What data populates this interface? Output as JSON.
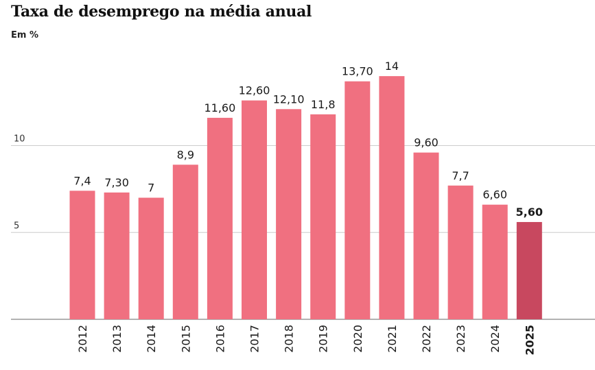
{
  "chart_data": {
    "type": "bar",
    "title": "Taxa de desemprego na média anual",
    "subtitle": "Em %",
    "xlabel": "",
    "ylabel": "Em %",
    "ylim": [
      0,
      15
    ],
    "yticks": [
      {
        "value": 5,
        "label": "5"
      },
      {
        "value": 10,
        "label": "10"
      }
    ],
    "grid": true,
    "categories": [
      "2012",
      "2013",
      "2014",
      "2015",
      "2016",
      "2017",
      "2018",
      "2019",
      "2020",
      "2021",
      "2022",
      "2023",
      "2024",
      "2025"
    ],
    "values": [
      7.4,
      7.3,
      7,
      8.9,
      11.6,
      12.6,
      12.1,
      11.8,
      13.7,
      14,
      9.6,
      7.7,
      6.6,
      5.6
    ],
    "value_labels": [
      "7,4",
      "7,30",
      "7",
      "8,9",
      "11,60",
      "12,60",
      "12,10",
      "11,8",
      "13,70",
      "14",
      "9,60",
      "7,7",
      "6,60",
      "5,60"
    ],
    "highlight": [
      "2025"
    ],
    "colors": {
      "bar": "#f07080",
      "highlight": "#c8485f",
      "grid": "#cccccc",
      "axis": "#999999"
    }
  }
}
